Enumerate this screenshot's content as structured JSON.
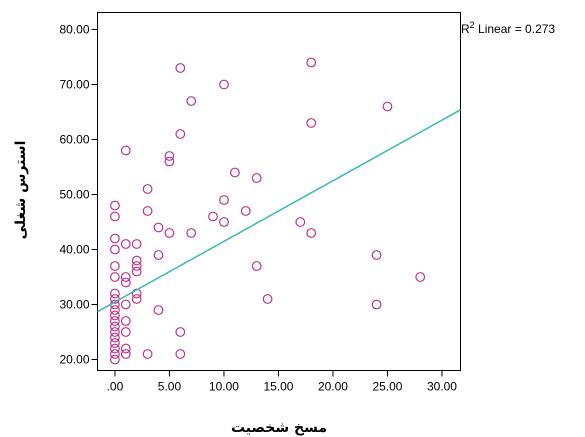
{
  "chart_data": {
    "type": "scatter",
    "title": "",
    "xlabel": "مسخ شخصیت",
    "ylabel": "استرس شغلی",
    "xlim": [
      -1.6,
      31.7
    ],
    "ylim": [
      18.0,
      83.1
    ],
    "xticks": [
      ".00",
      "5.00",
      "10.00",
      "15.00",
      "20.00",
      "25.00",
      "30.00"
    ],
    "xtick_values": [
      0,
      5,
      10,
      15,
      20,
      25,
      30
    ],
    "yticks": [
      "20.00",
      "30.00",
      "40.00",
      "50.00",
      "60.00",
      "70.00",
      "80.00"
    ],
    "ytick_values": [
      20,
      30,
      40,
      50,
      60,
      70,
      80
    ],
    "grid": false,
    "marker": "open-circle",
    "point_color": "#c0338a",
    "fit_line_color": "#3bb8b8",
    "fit_line": {
      "label_prefix": "R",
      "label_sup": "2",
      "label_suffix": " Linear = 0.273",
      "start": {
        "x": -1.6,
        "y": 28.7
      },
      "end": {
        "x": 31.7,
        "y": 65.4
      }
    },
    "points": [
      [
        0,
        20
      ],
      [
        0,
        21
      ],
      [
        0,
        22
      ],
      [
        0,
        23
      ],
      [
        0,
        24
      ],
      [
        0,
        25
      ],
      [
        0,
        26
      ],
      [
        0,
        27
      ],
      [
        0,
        28
      ],
      [
        0,
        29
      ],
      [
        0,
        30
      ],
      [
        0,
        31
      ],
      [
        0,
        32
      ],
      [
        0,
        35
      ],
      [
        0,
        37
      ],
      [
        0,
        40
      ],
      [
        0,
        42
      ],
      [
        0,
        46
      ],
      [
        0,
        48
      ],
      [
        1,
        21
      ],
      [
        1,
        22
      ],
      [
        1,
        25
      ],
      [
        1,
        27
      ],
      [
        1,
        30
      ],
      [
        1,
        34
      ],
      [
        1,
        35
      ],
      [
        1,
        41
      ],
      [
        1,
        58
      ],
      [
        2,
        31
      ],
      [
        2,
        32
      ],
      [
        2,
        36
      ],
      [
        2,
        37
      ],
      [
        2,
        38
      ],
      [
        2,
        41
      ],
      [
        3,
        21
      ],
      [
        3,
        47
      ],
      [
        3,
        51
      ],
      [
        4,
        29
      ],
      [
        4,
        39
      ],
      [
        4,
        44
      ],
      [
        5,
        43
      ],
      [
        5,
        56
      ],
      [
        5,
        57
      ],
      [
        6,
        21
      ],
      [
        6,
        25
      ],
      [
        6,
        61
      ],
      [
        6,
        73
      ],
      [
        7,
        43
      ],
      [
        7,
        67
      ],
      [
        9,
        46
      ],
      [
        10,
        45
      ],
      [
        10,
        49
      ],
      [
        10,
        70
      ],
      [
        11,
        54
      ],
      [
        12,
        47
      ],
      [
        13,
        37
      ],
      [
        13,
        53
      ],
      [
        14,
        31
      ],
      [
        17,
        45
      ],
      [
        18,
        43
      ],
      [
        18,
        63
      ],
      [
        18,
        74
      ],
      [
        24,
        30
      ],
      [
        24,
        39
      ],
      [
        25,
        66
      ],
      [
        28,
        35
      ]
    ]
  }
}
